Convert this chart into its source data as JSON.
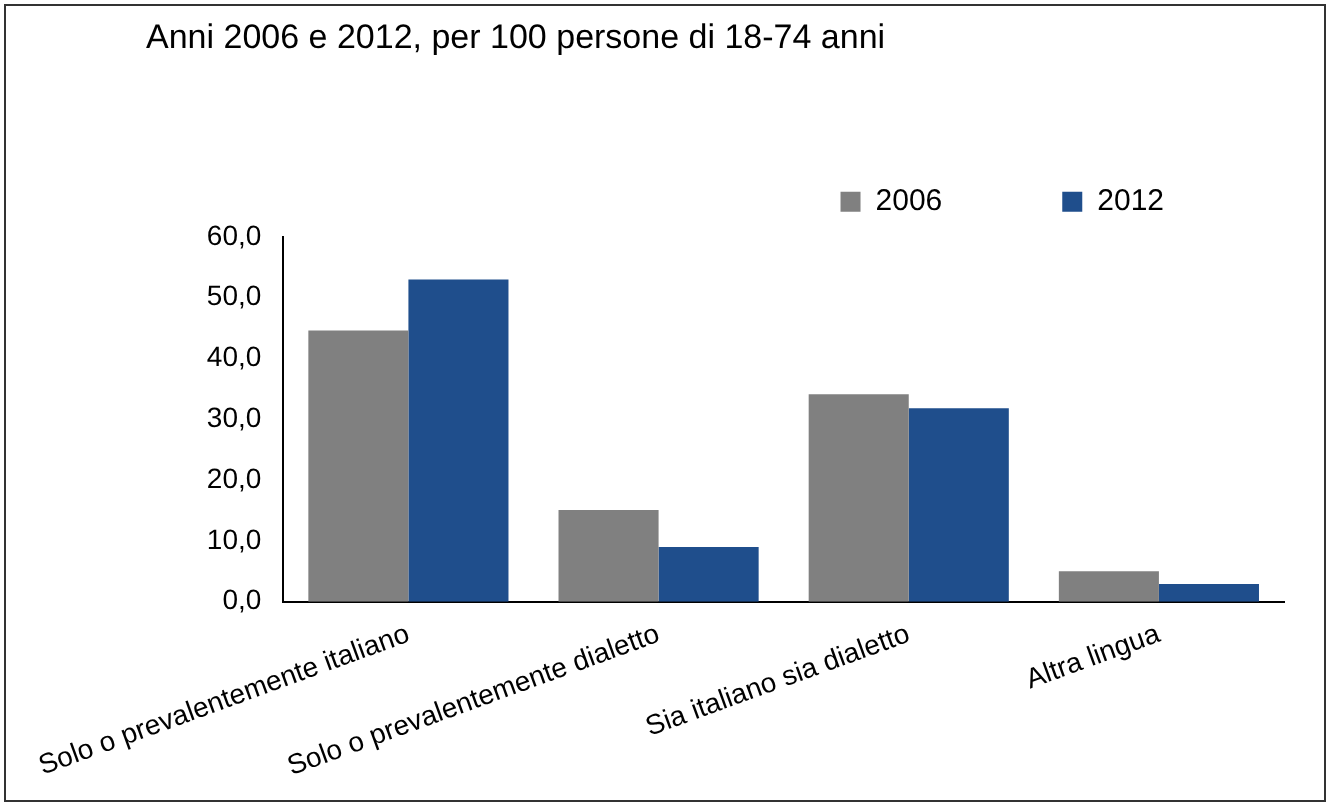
{
  "chart_data": {
    "type": "bar",
    "title": "Anni 2006 e 2012, per 100 persone di 18-74 anni",
    "categories": [
      "Solo o prevalentemente italiano",
      "Solo o prevalentemente dialetto",
      "Sia italiano sia dialetto",
      "Altra lingua"
    ],
    "series": [
      {
        "name": "2006",
        "color": "#808080",
        "values": [
          44.6,
          15.1,
          34.1,
          5.0
        ]
      },
      {
        "name": "2012",
        "color": "#1f4e8c",
        "values": [
          53.0,
          9.0,
          31.8,
          2.9
        ]
      }
    ],
    "ylim": [
      0,
      60
    ],
    "yticks": [
      {
        "value": 0,
        "label": "0,0"
      },
      {
        "value": 10,
        "label": "10,0"
      },
      {
        "value": 20,
        "label": "20,0"
      },
      {
        "value": 30,
        "label": "30,0"
      },
      {
        "value": 40,
        "label": "40,0"
      },
      {
        "value": 50,
        "label": "50,0"
      },
      {
        "value": 60,
        "label": "60,0"
      }
    ],
    "grid": false,
    "legend": "top right"
  }
}
